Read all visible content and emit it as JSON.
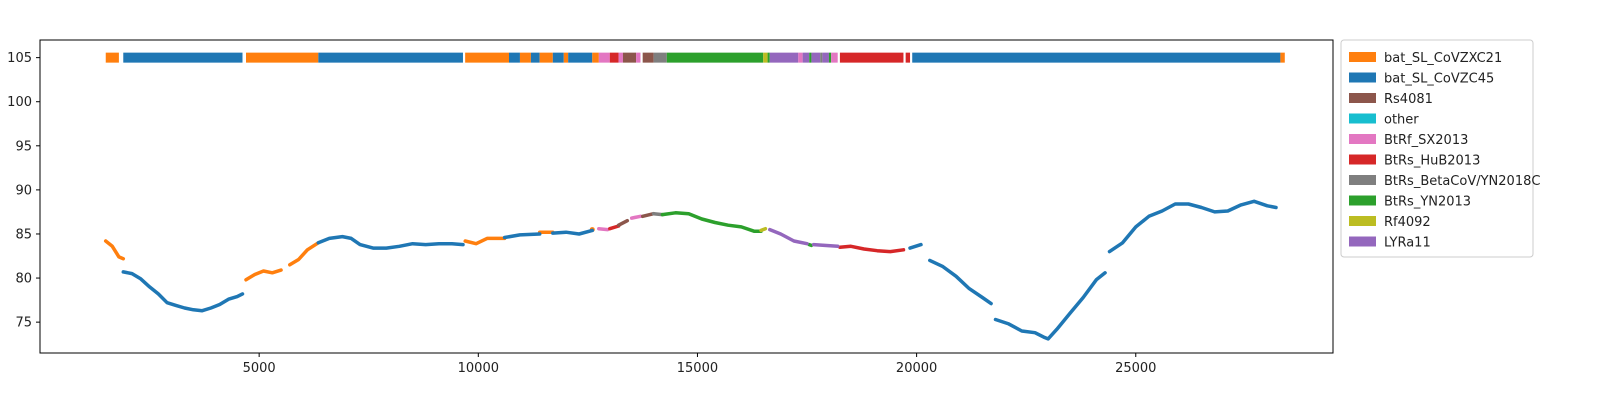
{
  "chart_data": {
    "type": "scatter",
    "title": "",
    "xlabel": "",
    "ylabel": "",
    "xlim": [
      0,
      29500
    ],
    "ylim": [
      71.5,
      107
    ],
    "grid": false,
    "x_ticks": [
      5000,
      10000,
      15000,
      20000,
      25000
    ],
    "x_tick_labels": [
      "5000",
      "10000",
      "15000",
      "20000",
      "25000"
    ],
    "y_ticks": [
      75,
      80,
      85,
      90,
      95,
      100,
      105
    ],
    "y_tick_labels": [
      "75",
      "80",
      "85",
      "90",
      "95",
      "100",
      "105"
    ],
    "legend_position": "outside-right-top",
    "top_bar_level": 105,
    "legend": [
      {
        "key": "s1",
        "name": "bat_SL_CoVZXC21",
        "color": "#ff7f0e"
      },
      {
        "key": "s2",
        "name": "bat_SL_CoVZC45",
        "color": "#1f77b4"
      },
      {
        "key": "s3",
        "name": "Rs4081",
        "color": "#8c564b"
      },
      {
        "key": "s4",
        "name": "other",
        "color": "#17becf"
      },
      {
        "key": "s5",
        "name": "BtRf_SX2013",
        "color": "#e377c2"
      },
      {
        "key": "s6",
        "name": "BtRs_HuB2013",
        "color": "#d62728"
      },
      {
        "key": "s7",
        "name": "BtRs_BetaCoV/YN2018C",
        "color": "#7f7f7f"
      },
      {
        "key": "s8",
        "name": "BtRs_YN2013",
        "color": "#2ca02c"
      },
      {
        "key": "s9",
        "name": "Rf4092",
        "color": "#bcbd22"
      },
      {
        "key": "s10",
        "name": "LYRa11",
        "color": "#9467bd"
      }
    ],
    "top_bar_segments": [
      {
        "start": 1500,
        "end": 1800,
        "series": "bat_SL_CoVZXC21"
      },
      {
        "start": 1900,
        "end": 4620,
        "series": "bat_SL_CoVZC45"
      },
      {
        "start": 4700,
        "end": 6350,
        "series": "bat_SL_CoVZXC21"
      },
      {
        "start": 6350,
        "end": 9650,
        "series": "bat_SL_CoVZC45"
      },
      {
        "start": 9700,
        "end": 10700,
        "series": "bat_SL_CoVZXC21"
      },
      {
        "start": 10700,
        "end": 10950,
        "series": "bat_SL_CoVZC45"
      },
      {
        "start": 10950,
        "end": 11200,
        "series": "bat_SL_CoVZXC21"
      },
      {
        "start": 11200,
        "end": 11400,
        "series": "bat_SL_CoVZC45"
      },
      {
        "start": 11400,
        "end": 11700,
        "series": "bat_SL_CoVZXC21"
      },
      {
        "start": 11700,
        "end": 11950,
        "series": "bat_SL_CoVZC45"
      },
      {
        "start": 11950,
        "end": 12050,
        "series": "bat_SL_CoVZXC21"
      },
      {
        "start": 12050,
        "end": 12600,
        "series": "bat_SL_CoVZC45"
      },
      {
        "start": 12600,
        "end": 12750,
        "series": "bat_SL_CoVZXC21"
      },
      {
        "start": 12750,
        "end": 13000,
        "series": "BtRf_SX2013"
      },
      {
        "start": 13000,
        "end": 13200,
        "series": "BtRs_HuB2013"
      },
      {
        "start": 13200,
        "end": 13300,
        "series": "BtRf_SX2013"
      },
      {
        "start": 13300,
        "end": 13600,
        "series": "Rs4081"
      },
      {
        "start": 13600,
        "end": 13700,
        "series": "BtRf_SX2013"
      },
      {
        "start": 13750,
        "end": 14000,
        "series": "Rs4081"
      },
      {
        "start": 14000,
        "end": 14300,
        "series": "BtRs_BetaCoV/YN2018C"
      },
      {
        "start": 14300,
        "end": 16500,
        "series": "BtRs_YN2013"
      },
      {
        "start": 16500,
        "end": 16600,
        "series": "Rf4092"
      },
      {
        "start": 16600,
        "end": 16650,
        "series": "BtRs_YN2013"
      },
      {
        "start": 16650,
        "end": 17300,
        "series": "LYRa11"
      },
      {
        "start": 17300,
        "end": 17400,
        "series": "BtRf_SX2013"
      },
      {
        "start": 17400,
        "end": 17550,
        "series": "LYRa11"
      },
      {
        "start": 17550,
        "end": 17600,
        "series": "BtRs_YN2013"
      },
      {
        "start": 17600,
        "end": 17800,
        "series": "LYRa11"
      },
      {
        "start": 17800,
        "end": 17850,
        "series": "BtRs_BetaCoV/YN2018C"
      },
      {
        "start": 17850,
        "end": 18000,
        "series": "LYRa11"
      },
      {
        "start": 18000,
        "end": 18050,
        "series": "BtRs_YN2013"
      },
      {
        "start": 18050,
        "end": 18200,
        "series": "BtRf_SX2013"
      },
      {
        "start": 18250,
        "end": 19700,
        "series": "BtRs_HuB2013"
      },
      {
        "start": 19750,
        "end": 19850,
        "series": "BtRs_HuB2013"
      },
      {
        "start": 19900,
        "end": 28300,
        "series": "bat_SL_CoVZC45"
      },
      {
        "start": 28300,
        "end": 28400,
        "series": "bat_SL_CoVZXC21"
      }
    ],
    "series": [
      {
        "name": "bat_SL_CoVZXC21",
        "segments": [
          [
            [
              1500,
              84.2
            ],
            [
              1650,
              83.6
            ],
            [
              1800,
              82.4
            ],
            [
              1900,
              82.2
            ]
          ],
          [
            [
              4700,
              79.8
            ],
            [
              4900,
              80.4
            ],
            [
              5100,
              80.8
            ],
            [
              5300,
              80.6
            ],
            [
              5500,
              80.9
            ]
          ],
          [
            [
              5700,
              81.5
            ],
            [
              5900,
              82.1
            ],
            [
              6100,
              83.2
            ],
            [
              6350,
              84.0
            ]
          ],
          [
            [
              9700,
              84.2
            ],
            [
              9950,
              83.9
            ],
            [
              10200,
              84.5
            ],
            [
              10600,
              84.5
            ]
          ],
          [
            [
              11400,
              85.2
            ],
            [
              11700,
              85.2
            ]
          ],
          [
            [
              12600,
              85.5
            ]
          ]
        ]
      },
      {
        "name": "bat_SL_CoVZC45",
        "segments": [
          [
            [
              1900,
              80.7
            ],
            [
              2100,
              80.5
            ],
            [
              2300,
              79.9
            ],
            [
              2500,
              79.0
            ],
            [
              2700,
              78.2
            ],
            [
              2900,
              77.2
            ],
            [
              3100,
              76.9
            ],
            [
              3300,
              76.6
            ],
            [
              3500,
              76.4
            ],
            [
              3700,
              76.3
            ],
            [
              3900,
              76.6
            ],
            [
              4100,
              77.0
            ],
            [
              4300,
              77.6
            ],
            [
              4500,
              77.9
            ],
            [
              4620,
              78.2
            ]
          ],
          [
            [
              6350,
              84.0
            ],
            [
              6600,
              84.5
            ],
            [
              6900,
              84.7
            ],
            [
              7100,
              84.5
            ],
            [
              7300,
              83.8
            ],
            [
              7600,
              83.4
            ],
            [
              7900,
              83.4
            ],
            [
              8200,
              83.6
            ],
            [
              8500,
              83.9
            ],
            [
              8800,
              83.8
            ],
            [
              9100,
              83.9
            ],
            [
              9400,
              83.9
            ],
            [
              9650,
              83.8
            ]
          ],
          [
            [
              10600,
              84.6
            ],
            [
              10950,
              84.9
            ],
            [
              11400,
              85.0
            ]
          ],
          [
            [
              11700,
              85.1
            ],
            [
              12000,
              85.2
            ],
            [
              12300,
              85.0
            ],
            [
              12600,
              85.4
            ]
          ],
          [
            [
              19850,
              83.4
            ],
            [
              20100,
              83.8
            ]
          ],
          [
            [
              20300,
              82.0
            ],
            [
              20600,
              81.3
            ],
            [
              20900,
              80.2
            ],
            [
              21200,
              78.8
            ],
            [
              21500,
              77.8
            ],
            [
              21700,
              77.1
            ]
          ],
          [
            [
              21800,
              75.3
            ],
            [
              22100,
              74.8
            ],
            [
              22400,
              74.0
            ],
            [
              22700,
              73.8
            ],
            [
              22900,
              73.3
            ],
            [
              23000,
              73.1
            ],
            [
              23200,
              74.2
            ],
            [
              23500,
              76.0
            ],
            [
              23800,
              77.8
            ],
            [
              24100,
              79.8
            ],
            [
              24300,
              80.6
            ]
          ],
          [
            [
              24400,
              83.0
            ],
            [
              24700,
              84.0
            ],
            [
              25000,
              85.8
            ],
            [
              25300,
              87.0
            ],
            [
              25600,
              87.6
            ],
            [
              25900,
              88.4
            ],
            [
              26200,
              88.4
            ],
            [
              26500,
              88.0
            ],
            [
              26800,
              87.5
            ],
            [
              27100,
              87.6
            ],
            [
              27400,
              88.3
            ],
            [
              27700,
              88.7
            ],
            [
              28000,
              88.2
            ],
            [
              28200,
              88.0
            ]
          ]
        ]
      },
      {
        "name": "BtRf_SX2013",
        "segments": [
          [
            [
              12750,
              85.6
            ],
            [
              12950,
              85.5
            ]
          ],
          [
            [
              13500,
              86.8
            ],
            [
              13700,
              87.0
            ]
          ]
        ]
      },
      {
        "name": "BtRs_HuB2013",
        "segments": [
          [
            [
              13000,
              85.6
            ],
            [
              13200,
              85.9
            ]
          ],
          [
            [
              18250,
              83.5
            ],
            [
              18500,
              83.6
            ],
            [
              18800,
              83.3
            ],
            [
              19100,
              83.1
            ],
            [
              19400,
              83.0
            ],
            [
              19700,
              83.2
            ]
          ]
        ]
      },
      {
        "name": "Rs4081",
        "segments": [
          [
            [
              13200,
              86.0
            ],
            [
              13400,
              86.5
            ]
          ],
          [
            [
              13750,
              87.0
            ],
            [
              14000,
              87.3
            ]
          ]
        ]
      },
      {
        "name": "BtRs_BetaCoV/YN2018C",
        "segments": [
          [
            [
              14000,
              87.3
            ],
            [
              14200,
              87.2
            ]
          ]
        ]
      },
      {
        "name": "BtRs_YN2013",
        "segments": [
          [
            [
              14200,
              87.2
            ],
            [
              14500,
              87.4
            ],
            [
              14800,
              87.3
            ],
            [
              15100,
              86.7
            ],
            [
              15400,
              86.3
            ],
            [
              15700,
              86.0
            ],
            [
              16000,
              85.8
            ],
            [
              16300,
              85.3
            ],
            [
              16450,
              85.3
            ]
          ],
          [
            [
              17550,
              83.8
            ],
            [
              17600,
              83.7
            ]
          ]
        ]
      },
      {
        "name": "Rf4092",
        "segments": [
          [
            [
              16450,
              85.4
            ],
            [
              16550,
              85.6
            ]
          ]
        ]
      },
      {
        "name": "LYRa11",
        "segments": [
          [
            [
              16650,
              85.5
            ],
            [
              16900,
              85.0
            ],
            [
              17200,
              84.2
            ],
            [
              17500,
              83.9
            ]
          ],
          [
            [
              17650,
              83.8
            ],
            [
              17900,
              83.7
            ],
            [
              18200,
              83.6
            ]
          ]
        ]
      }
    ]
  }
}
